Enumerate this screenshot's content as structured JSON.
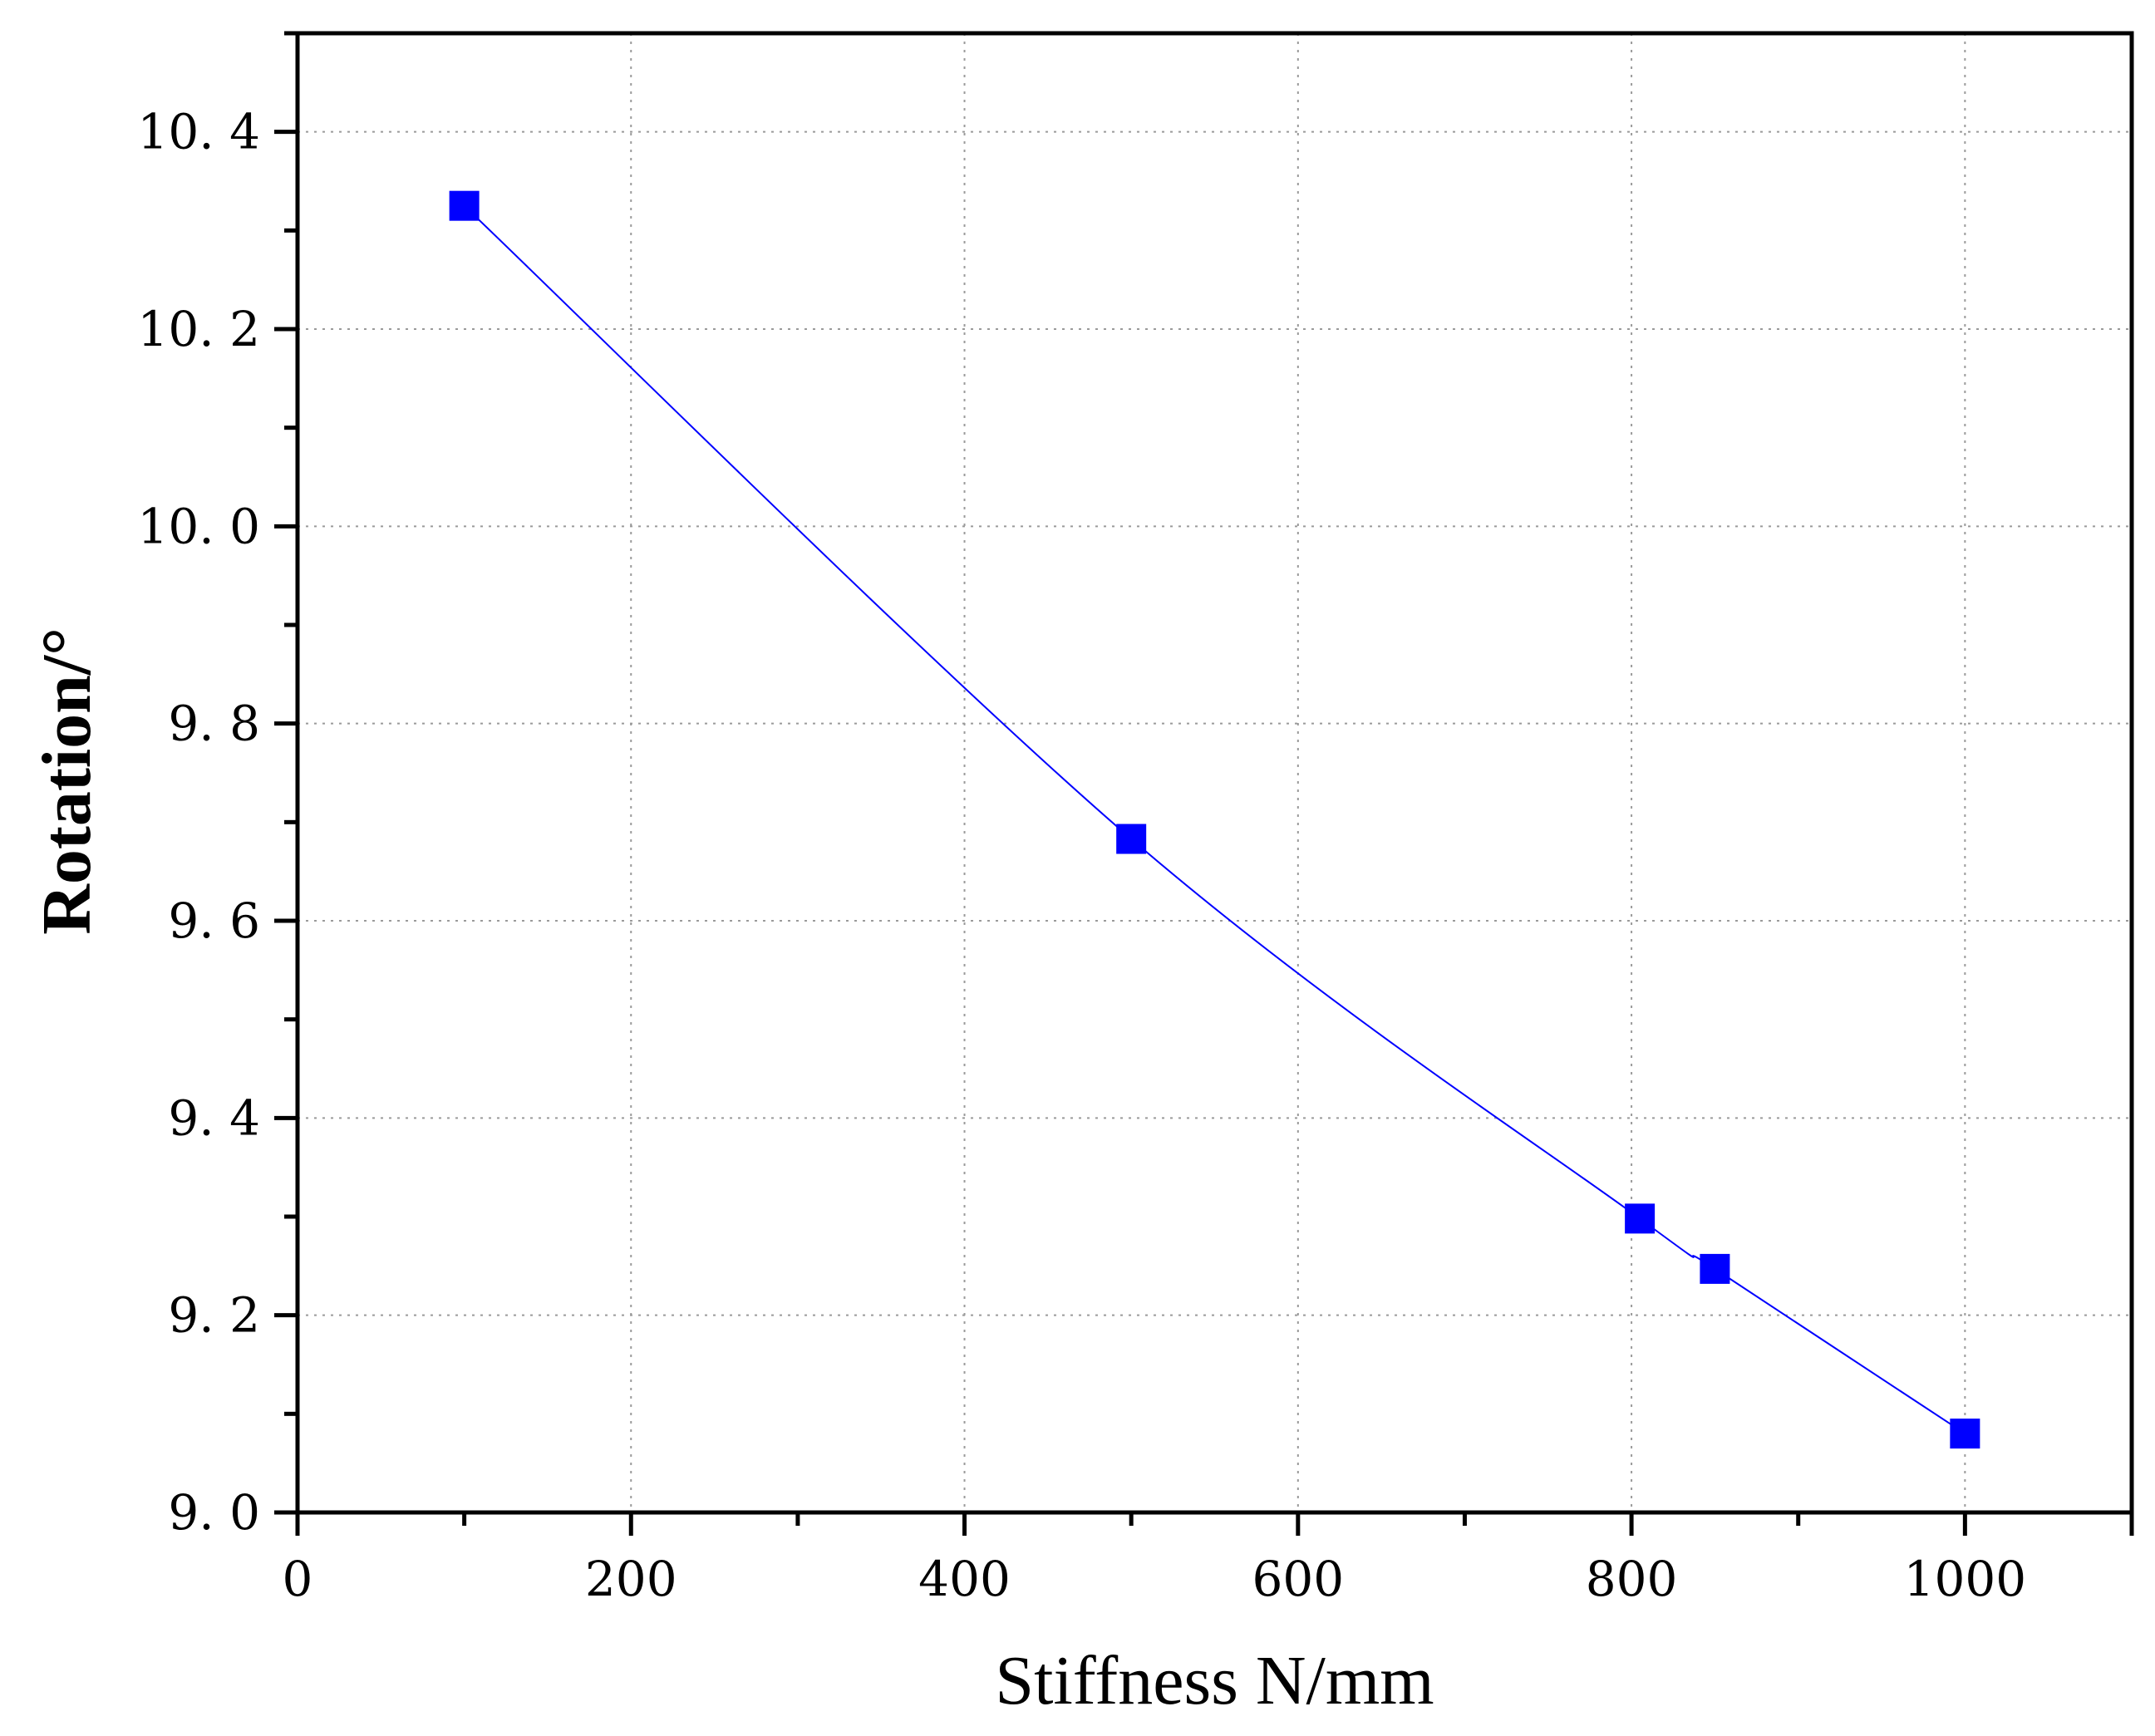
{
  "chart_data": {
    "type": "line",
    "title": "",
    "xlabel": "Stiffness  N/mm",
    "ylabel": "Rotation/°",
    "xlim": [
      0,
      1100
    ],
    "ylim": [
      9.0,
      10.5
    ],
    "x_ticks": [
      0,
      200,
      400,
      600,
      800,
      1000
    ],
    "x_tick_labels": [
      "0",
      "200",
      "400",
      "600",
      "800",
      "1000"
    ],
    "x_minor_ticks": [
      100,
      300,
      500,
      700,
      900
    ],
    "y_ticks": [
      9.0,
      9.2,
      9.4,
      9.6,
      9.8,
      10.0,
      10.2,
      10.4
    ],
    "y_tick_labels": [
      "9. 0",
      "9. 2",
      "9. 4",
      "9. 6",
      "9. 8",
      "10. 0",
      "10. 2",
      "10. 4"
    ],
    "y_minor_ticks": [
      9.1,
      9.3,
      9.5,
      9.7,
      9.9,
      10.1,
      10.3
    ],
    "grid": true,
    "series": [
      {
        "x": [
          100,
          500,
          805,
          850,
          1000
        ],
        "y": [
          10.325,
          9.683,
          9.298,
          9.247,
          9.08
        ],
        "color": "#0000ff",
        "marker": "square",
        "line": "smooth"
      }
    ]
  }
}
